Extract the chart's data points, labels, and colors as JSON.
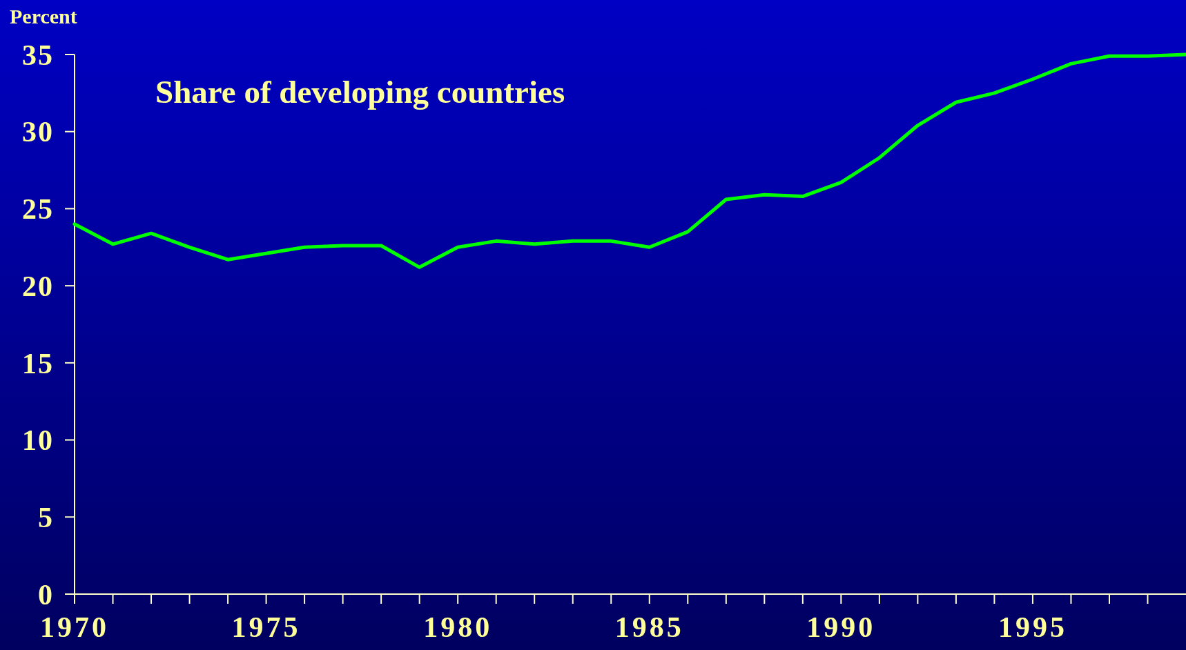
{
  "chart_data": {
    "type": "line",
    "title": "Share of developing countries",
    "ylabel": "Percent",
    "x": [
      1970,
      1971,
      1972,
      1973,
      1974,
      1975,
      1976,
      1977,
      1978,
      1979,
      1980,
      1981,
      1982,
      1983,
      1984,
      1985,
      1986,
      1987,
      1988,
      1989,
      1990,
      1991,
      1992,
      1993,
      1994,
      1995,
      1996,
      1997,
      1998,
      1999
    ],
    "series": [
      {
        "color": "#00ff00",
        "values": [
          24.0,
          22.7,
          23.4,
          22.5,
          21.7,
          22.1,
          22.5,
          22.6,
          22.6,
          21.2,
          22.5,
          22.9,
          22.7,
          22.9,
          22.9,
          22.5,
          23.5,
          25.6,
          25.9,
          25.8,
          26.7,
          28.3,
          30.4,
          31.9,
          32.5,
          33.4,
          34.4,
          34.9,
          34.9,
          35.0
        ]
      }
    ],
    "xlim": [
      1970,
      1999
    ],
    "xticks": [
      1970,
      {
        "value": 1971,
        "label": null
      },
      {
        "value": 1972,
        "label": null
      },
      {
        "value": 1973,
        "label": null
      },
      {
        "value": 1974,
        "label": null
      },
      1975,
      {
        "value": 1976,
        "label": null
      },
      {
        "value": 1977,
        "label": null
      },
      {
        "value": 1978,
        "label": null
      },
      {
        "value": 1979,
        "label": null
      },
      1980,
      {
        "value": 1981,
        "label": null
      },
      {
        "value": 1982,
        "label": null
      },
      {
        "value": 1983,
        "label": null
      },
      {
        "value": 1984,
        "label": null
      },
      1985,
      {
        "value": 1986,
        "label": null
      },
      {
        "value": 1987,
        "label": null
      },
      {
        "value": 1988,
        "label": null
      },
      {
        "value": 1989,
        "label": null
      },
      1990,
      {
        "value": 1991,
        "label": null
      },
      {
        "value": 1992,
        "label": null
      },
      {
        "value": 1993,
        "label": null
      },
      {
        "value": 1994,
        "label": null
      },
      1995,
      {
        "value": 1996,
        "label": null
      },
      {
        "value": 1997,
        "label": null
      },
      {
        "value": 1998,
        "label": null
      }
    ],
    "ylim": [
      0,
      35
    ],
    "yticks": [
      0,
      5,
      10,
      15,
      20,
      25,
      30,
      35
    ],
    "grid": false,
    "marker": "none",
    "line_style": "solid"
  }
}
